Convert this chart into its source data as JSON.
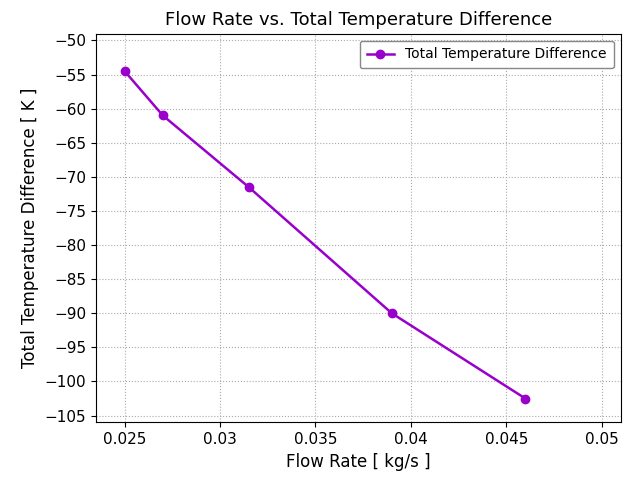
{
  "title": "Flow Rate vs. Total Temperature Difference",
  "xlabel": "Flow Rate [ kg/s ]",
  "ylabel": "Total Temperature Difference [ K ]",
  "x": [
    0.025,
    0.027,
    0.0315,
    0.039,
    0.046
  ],
  "y": [
    -54.5,
    -61.0,
    -71.5,
    -90.0,
    -102.5
  ],
  "line_color": "#9900CC",
  "marker": "o",
  "marker_facecolor": "#9900CC",
  "marker_size": 6,
  "line_width": 1.8,
  "legend_label": "Total Temperature Difference",
  "xlim": [
    0.0235,
    0.051
  ],
  "ylim": [
    -106,
    -49
  ],
  "xticks": [
    0.025,
    0.03,
    0.035,
    0.04,
    0.045,
    0.05
  ],
  "yticks": [
    -105,
    -100,
    -95,
    -90,
    -85,
    -80,
    -75,
    -70,
    -65,
    -60,
    -55,
    -50
  ],
  "grid": true,
  "background_color": "#ffffff",
  "title_fontsize": 13,
  "label_fontsize": 12,
  "tick_fontsize": 11
}
